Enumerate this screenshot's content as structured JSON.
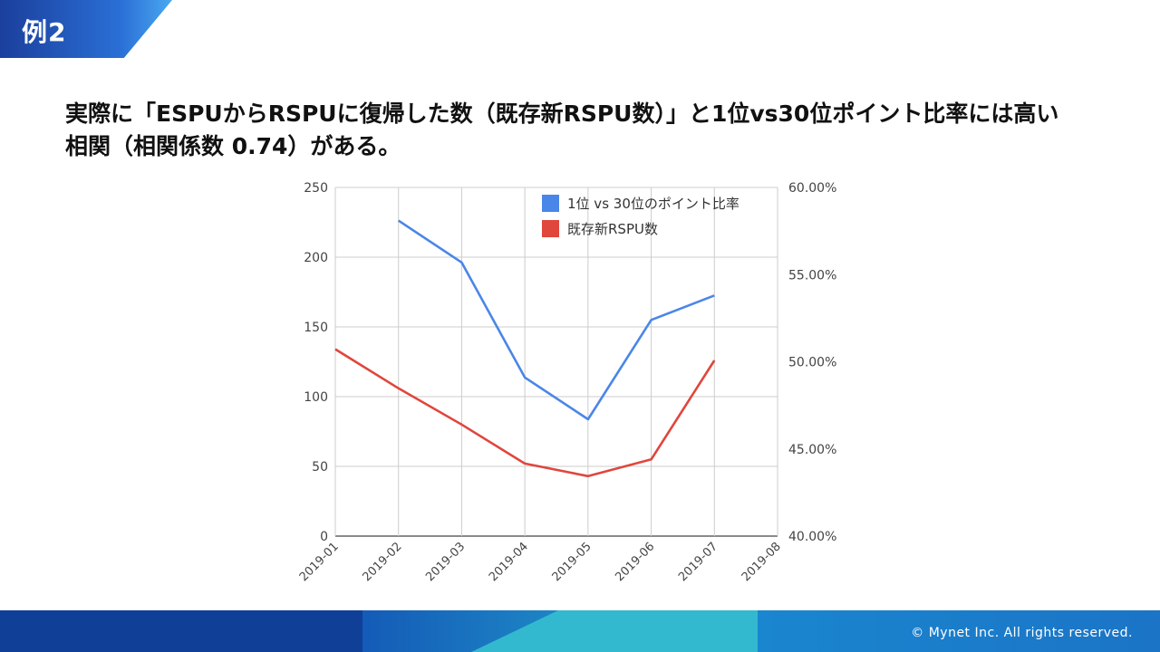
{
  "slide": {
    "tag": "例2",
    "headline_line1": "実際に「ESPUからRSPUに復帰した数（既存新RSPU数）」と1位vs30位ポイント比率には高い",
    "headline_line2": "相関（相関係数 0.74）がある。",
    "copyright": "© Mynet Inc. All rights reserved."
  },
  "chart_data": {
    "type": "line",
    "categories": [
      "2019-01",
      "2019-02",
      "2019-03",
      "2019-04",
      "2019-05",
      "2019-06",
      "2019-07",
      "2019-08"
    ],
    "left_axis": {
      "min": 0,
      "max": 250,
      "ticks": [
        "0",
        "50",
        "100",
        "150",
        "200",
        "250"
      ]
    },
    "right_axis": {
      "min": 0.4,
      "max": 0.6,
      "ticks": [
        "40.00%",
        "45.00%",
        "50.00%",
        "55.00%",
        "60.00%"
      ]
    },
    "grid": true,
    "legend_position": "top-right",
    "series": [
      {
        "name": "1位 vs 30位のポイント比率",
        "axis": "right",
        "color": "#4a86e8",
        "values": [
          null,
          0.581,
          0.557,
          0.491,
          0.467,
          0.524,
          0.538,
          null
        ]
      },
      {
        "name": "既存新RSPU数",
        "axis": "left",
        "color": "#e0463c",
        "values": [
          134,
          106,
          80,
          52,
          43,
          55,
          126,
          null
        ]
      }
    ]
  }
}
